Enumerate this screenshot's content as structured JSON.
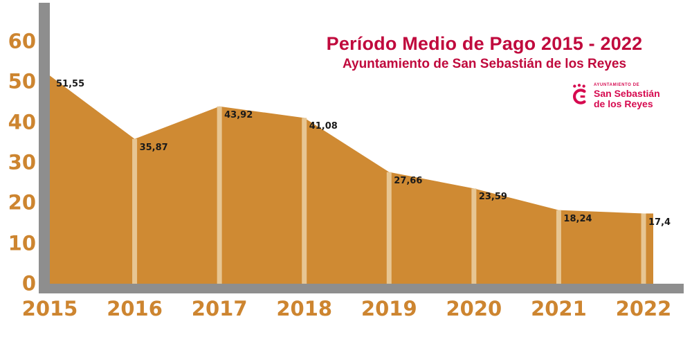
{
  "chart_data": {
    "type": "area",
    "title": "Período Medio de Pago 2015 - 2022",
    "subtitle": "Ayuntamiento de San Sebastián de los Reyes",
    "categories": [
      "2015",
      "2016",
      "2017",
      "2018",
      "2019",
      "2020",
      "2021",
      "2022"
    ],
    "values": [
      51.55,
      35.87,
      43.92,
      41.08,
      27.66,
      23.59,
      18.24,
      17.4
    ],
    "value_labels": [
      "51,55",
      "35,87",
      "43,92",
      "41,08",
      "27,66",
      "23,59",
      "18,24",
      "17,4"
    ],
    "y_ticks": [
      0,
      10,
      20,
      30,
      40,
      50,
      60
    ],
    "ylim": [
      0,
      60
    ],
    "xlabel": "",
    "ylabel": "",
    "grid": false,
    "legend": "none",
    "colors": {
      "area": "#cf8a33",
      "stripe": "#e7c693",
      "axis": "#8e8e8e",
      "tick_label": "#cd8530",
      "title": "#c00a3d",
      "logo": "#d6094f",
      "value_label": "#1a1a1a"
    }
  },
  "logo": {
    "small": "AYUNTAMIENTO DE",
    "name_line1": "San Sebastián",
    "name_line2": "de los Reyes"
  }
}
